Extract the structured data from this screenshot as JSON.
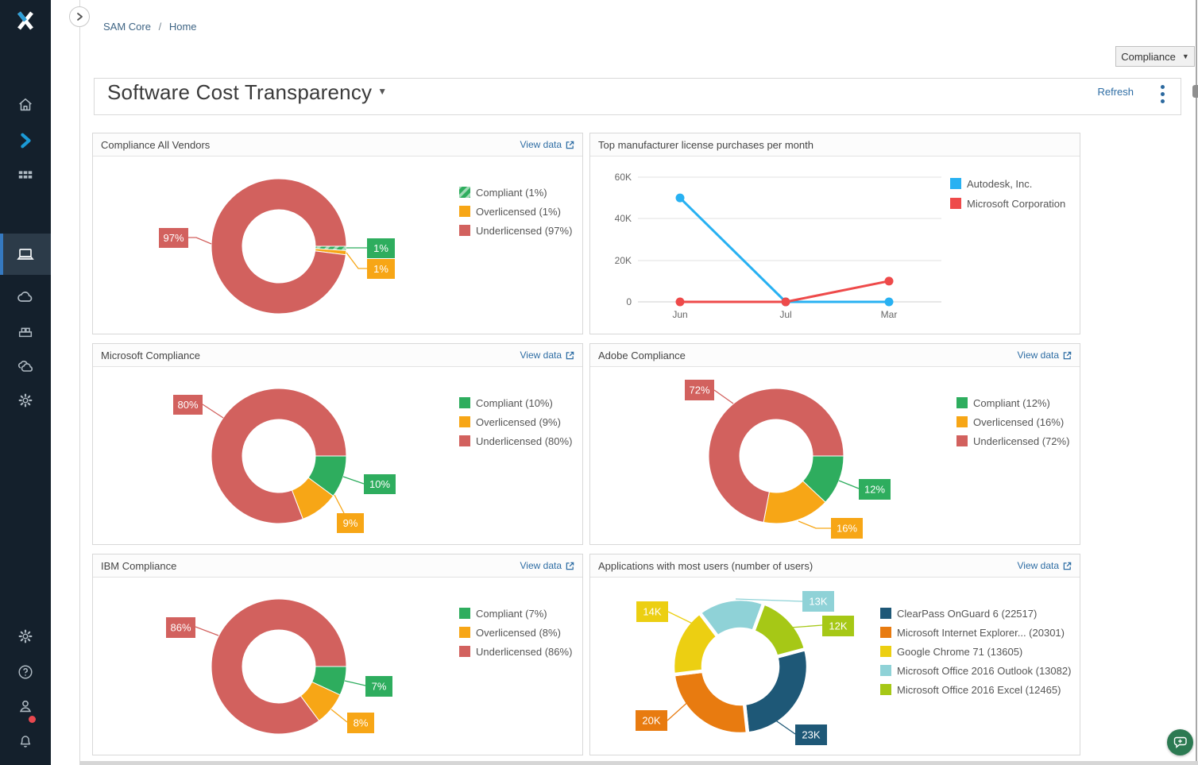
{
  "breadcrumb": {
    "items": [
      "SAM Core",
      "Home"
    ],
    "separator": "/"
  },
  "toolbar": {
    "view_selector": "Compliance"
  },
  "header": {
    "title": "Software Cost Transparency",
    "refresh": "Refresh"
  },
  "sidebar": {
    "icons_top": [
      "home-icon",
      "flexera-arrow-icon",
      "apps-grid-icon"
    ],
    "icons_modules": [
      "devices-icon",
      "cloud-icon",
      "installations-icon",
      "clouds-icon",
      "gear-icon"
    ],
    "icons_bottom": [
      "settings-icon",
      "help-icon",
      "user-icon",
      "notifications-bell-icon"
    ],
    "notification_badge": true
  },
  "colors": {
    "compliant_green": "#2ead5e",
    "overlicensed_orange": "#f7a616",
    "underlicensed_red": "#d2615e",
    "line_blue": "#28b1f2",
    "line_red": "#ee4a4a",
    "accent_link_blue": "#2e6da4",
    "sidebar_bg": "#14202c",
    "fab_green": "#2c7a52"
  },
  "panels": [
    {
      "title": "Compliance All Vendors",
      "view_data": "View data"
    },
    {
      "title": "Top manufacturer license purchases per month"
    },
    {
      "title": "Microsoft Compliance",
      "view_data": "View data"
    },
    {
      "title": "Adobe Compliance",
      "view_data": "View data"
    },
    {
      "title": "IBM Compliance",
      "view_data": "View data"
    },
    {
      "title": "Applications with most users (number of users)",
      "view_data": "View data"
    }
  ],
  "chart_data": [
    {
      "type": "pie",
      "donut": true,
      "title": "Compliance All Vendors",
      "slices": [
        {
          "name": "Compliant",
          "value": 1,
          "label": "1%",
          "legend": "Compliant (1%)",
          "color": "#2ead5e",
          "hatched": true
        },
        {
          "name": "Overlicensed",
          "value": 1,
          "label": "1%",
          "legend": "Overlicensed (1%)",
          "color": "#f7a616"
        },
        {
          "name": "Underlicensed",
          "value": 97,
          "label": "97%",
          "legend": "Underlicensed (97%)",
          "color": "#d2615e"
        }
      ]
    },
    {
      "type": "line",
      "title": "Top manufacturer license purchases per month",
      "x": [
        "Jun",
        "Jul",
        "Mar"
      ],
      "ylim": [
        0,
        60000
      ],
      "yticks_top_down": [
        "60K",
        "40K",
        "20K",
        "0"
      ],
      "grid": true,
      "legend_position": "right",
      "series": [
        {
          "name": "Autodesk, Inc.",
          "color": "#28b1f2",
          "values": [
            50000,
            0,
            0
          ]
        },
        {
          "name": "Microsoft Corporation",
          "color": "#ee4a4a",
          "values": [
            0,
            0,
            10000
          ]
        }
      ]
    },
    {
      "type": "pie",
      "donut": true,
      "title": "Microsoft Compliance",
      "slices": [
        {
          "name": "Compliant",
          "value": 10,
          "label": "10%",
          "legend": "Compliant (10%)",
          "color": "#2ead5e"
        },
        {
          "name": "Overlicensed",
          "value": 9,
          "label": "9%",
          "legend": "Overlicensed (9%)",
          "color": "#f7a616"
        },
        {
          "name": "Underlicensed",
          "value": 80,
          "label": "80%",
          "legend": "Underlicensed (80%)",
          "color": "#d2615e"
        }
      ]
    },
    {
      "type": "pie",
      "donut": true,
      "title": "Adobe Compliance",
      "slices": [
        {
          "name": "Compliant",
          "value": 12,
          "label": "12%",
          "legend": "Compliant (12%)",
          "color": "#2ead5e"
        },
        {
          "name": "Overlicensed",
          "value": 16,
          "label": "16%",
          "legend": "Overlicensed (16%)",
          "color": "#f7a616"
        },
        {
          "name": "Underlicensed",
          "value": 72,
          "label": "72%",
          "legend": "Underlicensed (72%)",
          "color": "#d2615e"
        }
      ]
    },
    {
      "type": "pie",
      "donut": true,
      "title": "IBM Compliance",
      "slices": [
        {
          "name": "Compliant",
          "value": 7,
          "label": "7%",
          "legend": "Compliant (7%)",
          "color": "#2ead5e"
        },
        {
          "name": "Overlicensed",
          "value": 8,
          "label": "8%",
          "legend": "Overlicensed (8%)",
          "color": "#f7a616"
        },
        {
          "name": "Underlicensed",
          "value": 86,
          "label": "86%",
          "legend": "Underlicensed (86%)",
          "color": "#d2615e"
        }
      ]
    },
    {
      "type": "pie",
      "donut": true,
      "exploded": true,
      "title": "Applications with most users (number of users)",
      "slices": [
        {
          "name": "ClearPass OnGuard 6",
          "value": 22517,
          "label": "23K",
          "legend": "ClearPass OnGuard 6 (22517)",
          "color": "#1e5877"
        },
        {
          "name": "Microsoft Internet Explorer...",
          "value": 20301,
          "label": "20K",
          "legend": "Microsoft Internet Explorer... (20301)",
          "color": "#e87b10"
        },
        {
          "name": "Google Chrome 71",
          "value": 13605,
          "label": "14K",
          "legend": "Google Chrome 71 (13605)",
          "color": "#eccf12"
        },
        {
          "name": "Microsoft Office 2016 Outlook",
          "value": 13082,
          "label": "13K",
          "legend": "Microsoft Office 2016 Outlook (13082)",
          "color": "#8fd2d7"
        },
        {
          "name": "Microsoft Office 2016 Excel",
          "value": 12465,
          "label": "12K",
          "legend": "Microsoft Office 2016 Excel (12465)",
          "color": "#a6c816"
        }
      ]
    }
  ]
}
